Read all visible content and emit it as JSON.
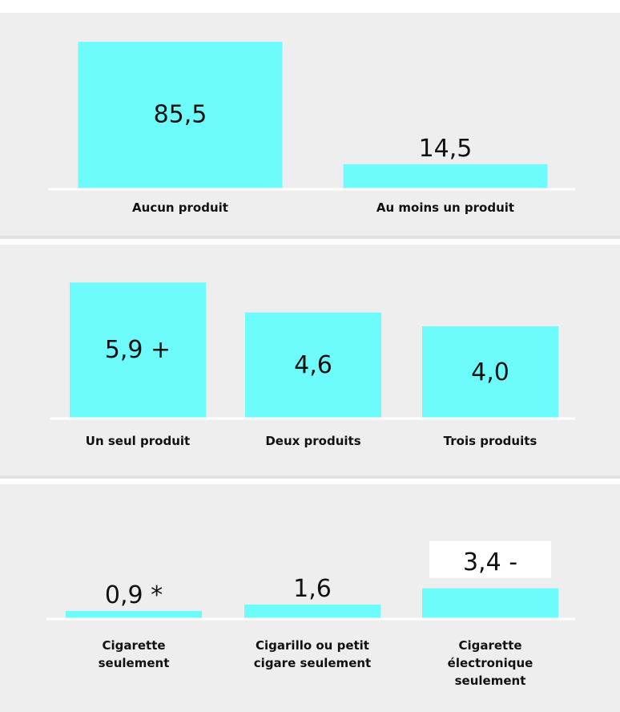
{
  "header": {
    "title": ""
  },
  "colors": {
    "bar": "#6efbfb",
    "panel": "#eeeeee",
    "baseline": "#ffffff",
    "label_box": "#ffffff"
  },
  "chart_data": [
    {
      "type": "bar",
      "categories": [
        "Aucun produit",
        "Au moins un produit"
      ],
      "values": [
        85.5,
        14.5
      ],
      "value_labels": [
        "85,5",
        "14,5"
      ],
      "ylim": [
        0,
        100
      ]
    },
    {
      "type": "bar",
      "categories": [
        "Un seul produit",
        "Deux produits",
        "Trois produits"
      ],
      "values": [
        5.9,
        4.6,
        4.0
      ],
      "value_labels": [
        "5,9 +",
        "4,6",
        "4,0"
      ],
      "ylim": [
        0,
        8
      ]
    },
    {
      "type": "bar",
      "categories": [
        "Cigarette seulement",
        "Cigarillo ou petit cigare seulement",
        "Cigarette électronique seulement"
      ],
      "category_lines": [
        [
          "Cigarette",
          "seulement"
        ],
        [
          "Cigarillo ou petit",
          "cigare seulement"
        ],
        [
          "Cigarette",
          "électronique",
          "seulement"
        ]
      ],
      "values": [
        0.9,
        1.6,
        3.4
      ],
      "value_labels": [
        "0,9 *",
        "1,6",
        "3,4 -"
      ],
      "ylim": [
        0,
        16
      ]
    }
  ]
}
